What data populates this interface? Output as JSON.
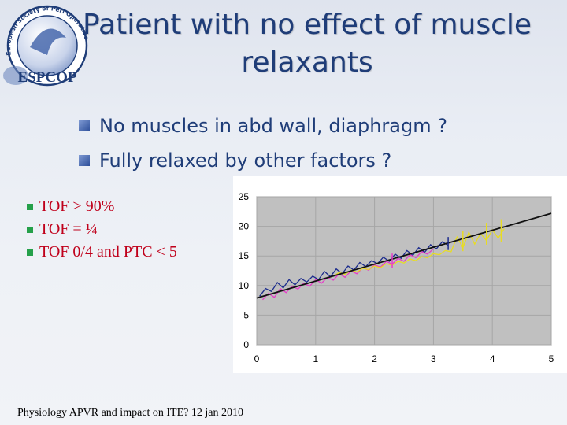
{
  "logo": {
    "name": "ESPCOP",
    "arc_text": "European Society of Peri Operative Care of the Obese Patient",
    "accent": "#1f3d78"
  },
  "slide": {
    "title_line1": "Patient with no effect of muscle",
    "title_line2": "relaxants",
    "bullets": [
      "No muscles in abd wall, diaphragm ?",
      "Fully relaxed by other factors ?"
    ],
    "red_items": [
      "TOF > 90%",
      "TOF = ¼",
      "TOF 0/4 and PTC < 5"
    ],
    "footer": "Physiology APVR and impact on ITE? 12 jan 2010"
  },
  "colors": {
    "title": "#1f3d78",
    "red_text": "#c0001b",
    "bullet_marker": "#2d4f9a",
    "green_marker": "#25a04a",
    "plot_bg": "#c0c0c0"
  },
  "chart_data": {
    "type": "line",
    "title": "",
    "xlabel": "",
    "ylabel": "",
    "xlim": [
      0,
      5
    ],
    "ylim": [
      0,
      25
    ],
    "x_ticks": [
      "0",
      "1",
      "2",
      "3",
      "4",
      "5"
    ],
    "y_ticks": [
      "0",
      "5",
      "10",
      "15",
      "20",
      "25"
    ],
    "grid": true,
    "series": [
      {
        "name": "trace-blue",
        "color": "#1a2a8c",
        "x": [
          0.05,
          0.15,
          0.25,
          0.35,
          0.45,
          0.55,
          0.65,
          0.75,
          0.85,
          0.95,
          1.05,
          1.15,
          1.25,
          1.35,
          1.45,
          1.55,
          1.65,
          1.75,
          1.85,
          1.95,
          2.05,
          2.15,
          2.25,
          2.35,
          2.45,
          2.55,
          2.65,
          2.75,
          2.85,
          2.95,
          3.05,
          3.15,
          3.25
        ],
        "y": [
          8.2,
          9.5,
          9.0,
          10.5,
          9.6,
          11.0,
          10.1,
          11.2,
          10.6,
          11.6,
          11.0,
          12.4,
          11.5,
          12.8,
          12.0,
          13.3,
          12.6,
          13.9,
          13.2,
          14.2,
          13.7,
          14.8,
          14.1,
          15.3,
          14.6,
          15.9,
          15.1,
          16.4,
          15.6,
          16.9,
          16.2,
          17.4,
          16.8
        ]
      },
      {
        "name": "trace-pink",
        "color": "#e63cc8",
        "x": [
          0.1,
          0.2,
          0.3,
          0.4,
          0.5,
          0.6,
          0.7,
          0.8,
          0.9,
          1.0,
          1.1,
          1.2,
          1.3,
          1.4,
          1.5,
          1.6,
          1.7,
          1.8,
          1.9,
          2.0,
          2.1,
          2.2,
          2.3,
          2.4,
          2.5,
          2.6,
          2.7,
          2.8,
          2.9,
          3.0
        ],
        "y": [
          7.6,
          8.7,
          8.0,
          9.5,
          8.8,
          9.9,
          9.4,
          10.4,
          9.9,
          11.0,
          10.4,
          11.4,
          10.9,
          12.0,
          11.4,
          12.5,
          12.0,
          13.0,
          12.6,
          13.5,
          13.1,
          14.1,
          13.6,
          14.6,
          14.1,
          15.2,
          14.7,
          15.7,
          15.3,
          16.2
        ]
      },
      {
        "name": "trace-yellow",
        "color": "#e8dc22",
        "x": [
          1.3,
          1.4,
          1.5,
          1.6,
          1.7,
          1.8,
          1.9,
          2.0,
          2.1,
          2.2,
          2.3,
          2.4,
          2.5,
          2.6,
          2.7,
          2.8,
          2.9,
          3.0,
          3.1,
          3.2,
          3.3,
          3.4,
          3.5,
          3.6,
          3.7,
          3.8,
          3.9,
          4.0,
          4.1,
          4.2
        ],
        "y": [
          11.6,
          12.2,
          11.9,
          12.6,
          12.3,
          12.9,
          12.7,
          13.3,
          13.0,
          13.7,
          13.4,
          14.1,
          13.8,
          14.5,
          14.2,
          14.9,
          14.7,
          15.4,
          15.2,
          15.9,
          15.7,
          18.2,
          16.4,
          19.0,
          17.0,
          18.8,
          17.6,
          19.4,
          18.0,
          19.6
        ]
      },
      {
        "name": "trend-line",
        "color": "#111111",
        "x": [
          0.0,
          5.0
        ],
        "y": [
          7.9,
          22.2
        ]
      }
    ],
    "markers": [
      {
        "name": "marker-blue-1",
        "color": "#1a2a8c",
        "x": 3.25,
        "y1": 16.0,
        "y2": 18.2
      },
      {
        "name": "marker-pink-1",
        "color": "#e63cc8",
        "x": 2.3,
        "y1": 12.9,
        "y2": 15.4
      },
      {
        "name": "marker-yellow-1",
        "color": "#e8dc22",
        "x": 3.5,
        "y1": 15.8,
        "y2": 19.2
      },
      {
        "name": "marker-yellow-2",
        "color": "#e8dc22",
        "x": 3.9,
        "y1": 16.9,
        "y2": 20.6
      },
      {
        "name": "marker-yellow-3",
        "color": "#e8dc22",
        "x": 4.15,
        "y1": 17.4,
        "y2": 21.2
      }
    ]
  }
}
